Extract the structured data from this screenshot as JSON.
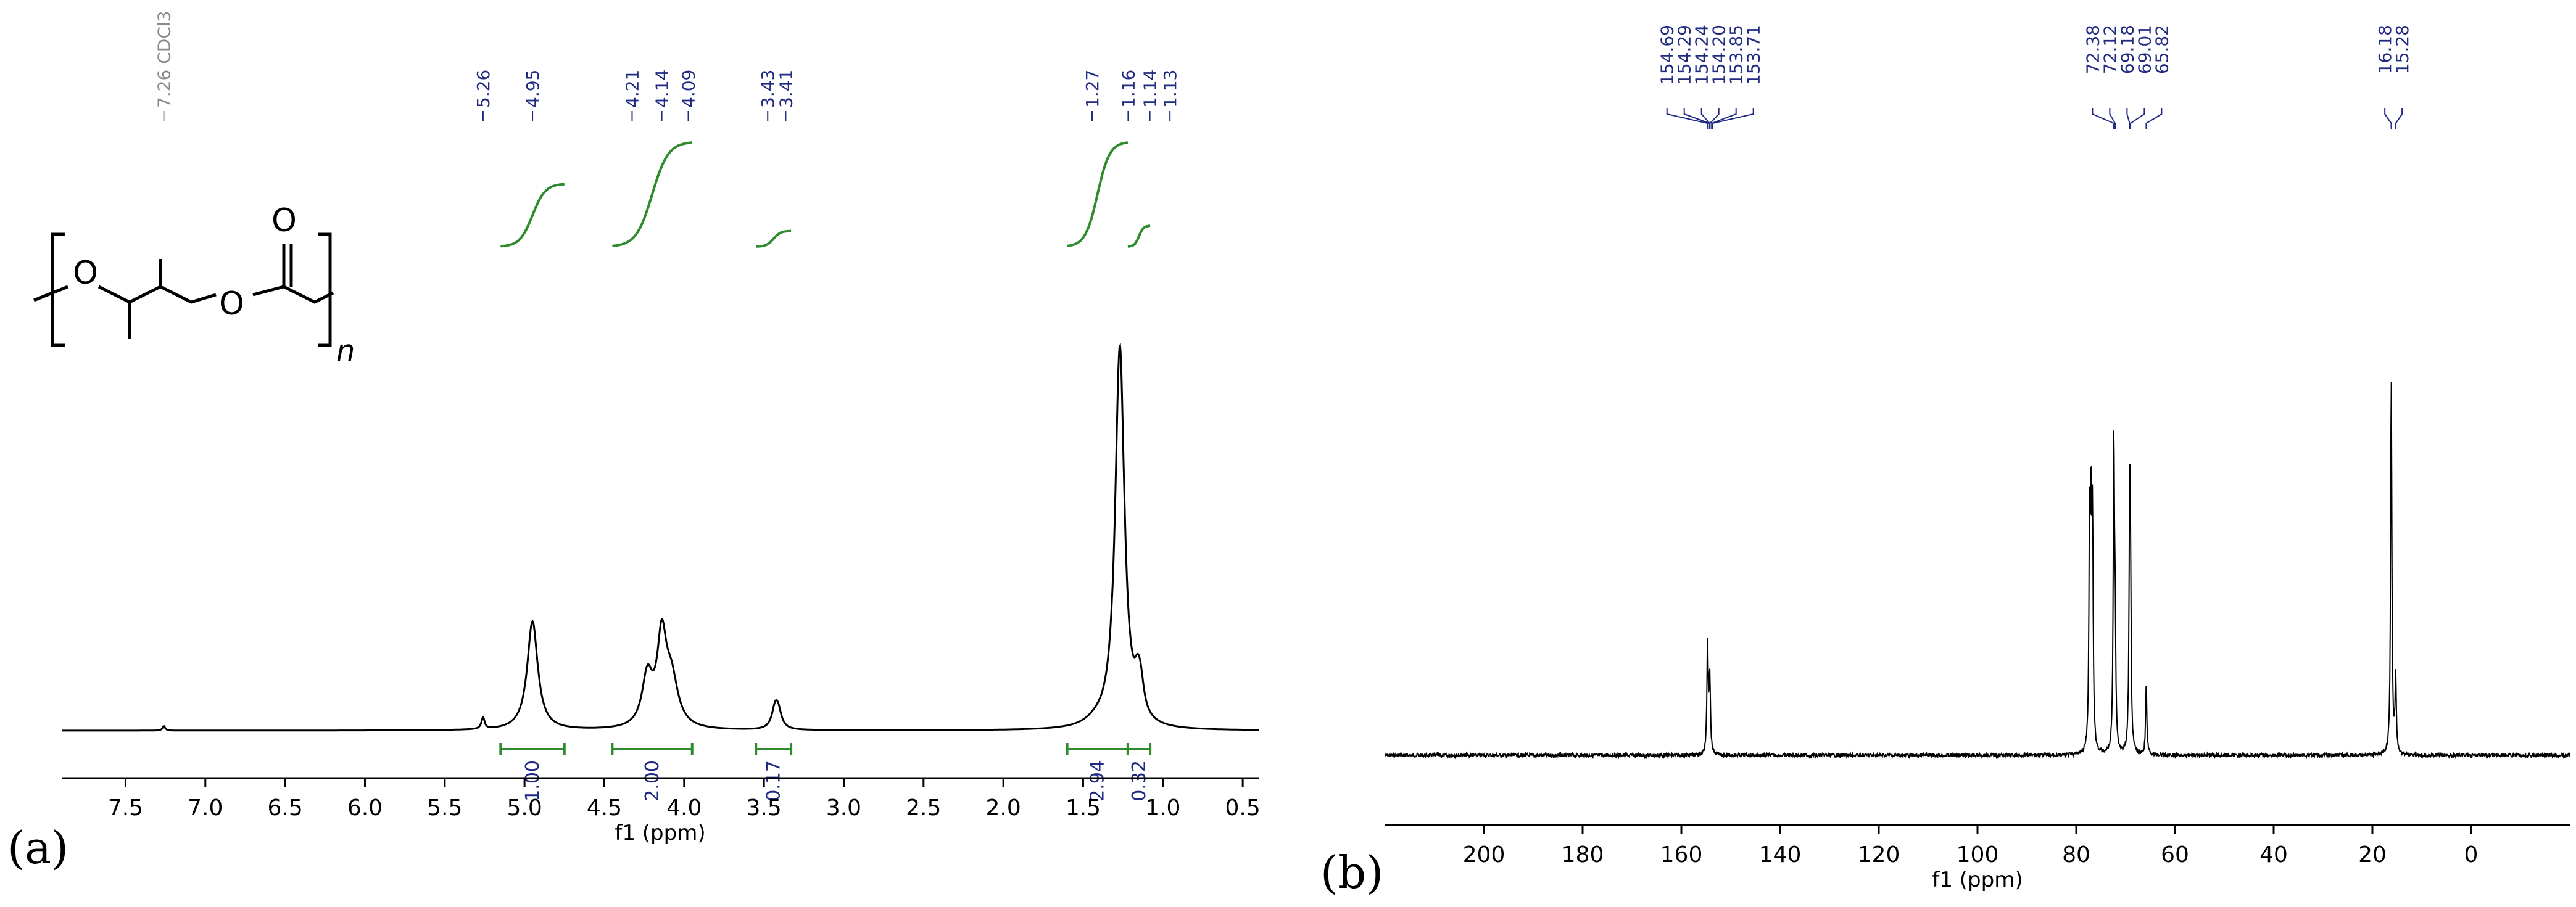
{
  "figure": {
    "panel_a_label": "(a)",
    "panel_b_label": "(b)"
  },
  "structure": {
    "atom_o1": "O",
    "atom_o2": "O",
    "atom_o3": "O",
    "subscript": "n"
  },
  "chart_data": [
    {
      "type": "line",
      "nucleus": "1H NMR spectrum",
      "xlabel": "f1 (ppm)",
      "xlim": [
        7.9,
        0.4
      ],
      "x_reversed": true,
      "x_ticks": [
        "7.5",
        "7.0",
        "6.5",
        "6.0",
        "5.5",
        "5.0",
        "4.5",
        "4.0",
        "3.5",
        "3.0",
        "2.5",
        "2.0",
        "1.5",
        "1.0",
        "0.5"
      ],
      "grid": false,
      "series": [
        {
          "peaks": [
            {
              "x": 7.26,
              "height": 0.012,
              "width": 0.01
            },
            {
              "x": 5.26,
              "height": 0.03,
              "width": 0.012
            },
            {
              "x": 4.95,
              "height": 0.285,
              "width": 0.04
            },
            {
              "x": 4.23,
              "height": 0.13,
              "width": 0.04
            },
            {
              "x": 4.14,
              "height": 0.22,
              "width": 0.035
            },
            {
              "x": 4.08,
              "height": 0.12,
              "width": 0.05
            },
            {
              "x": 3.43,
              "height": 0.05,
              "width": 0.025
            },
            {
              "x": 3.41,
              "height": 0.04,
              "width": 0.025
            },
            {
              "x": 1.27,
              "height": 1.0,
              "width": 0.035
            },
            {
              "x": 1.16,
              "height": 0.065,
              "width": 0.025
            },
            {
              "x": 1.14,
              "height": 0.07,
              "width": 0.025
            },
            {
              "x": 1.42,
              "height": 0.012,
              "width": 0.08
            }
          ]
        }
      ],
      "peak_labels": [
        {
          "x": 7.26,
          "label": "7.26 CDCl3",
          "color": "#8a8a8a"
        },
        {
          "x": 5.26,
          "label": "5.26",
          "color": "#1f2a80"
        },
        {
          "x": 4.95,
          "label": "4.95",
          "color": "#1f2a80"
        },
        {
          "x": 4.21,
          "label": "4.21",
          "color": "#1f2a80"
        },
        {
          "x": 4.14,
          "label": "4.14",
          "color": "#1f2a80"
        },
        {
          "x": 4.09,
          "label": "4.09",
          "color": "#1f2a80"
        },
        {
          "x": 3.43,
          "label": "3.43",
          "color": "#1f2a80"
        },
        {
          "x": 3.41,
          "label": "3.41",
          "color": "#1f2a80"
        },
        {
          "x": 1.27,
          "label": "1.27",
          "color": "#1f2a80"
        },
        {
          "x": 1.16,
          "label": "1.16",
          "color": "#1f2a80"
        },
        {
          "x": 1.14,
          "label": "1.14",
          "color": "#1f2a80"
        },
        {
          "x": 1.13,
          "label": "1.13",
          "color": "#1f2a80"
        }
      ],
      "integrals": [
        {
          "from": 5.15,
          "to": 4.75,
          "value": "1.00",
          "rise": 0.6
        },
        {
          "from": 4.45,
          "to": 3.95,
          "value": "2.00",
          "rise": 1.0
        },
        {
          "from": 3.55,
          "to": 3.33,
          "value": "0.17",
          "rise": 0.15
        },
        {
          "from": 1.6,
          "to": 1.22,
          "value": "2.94",
          "rise": 1.0
        },
        {
          "from": 1.22,
          "to": 1.08,
          "value": "0.32",
          "rise": 0.2
        }
      ],
      "colors": {
        "spectrum": "#000000",
        "integral": "#2e8b2e",
        "peak_label": "#1f2a80"
      }
    },
    {
      "type": "line",
      "nucleus": "13C NMR spectrum",
      "xlabel": "f1 (ppm)",
      "xlim": [
        220,
        -20
      ],
      "x_reversed": true,
      "x_ticks": [
        "200",
        "180",
        "160",
        "140",
        "120",
        "100",
        "80",
        "60",
        "40",
        "20",
        "0"
      ],
      "grid": false,
      "series": [
        {
          "peaks": [
            {
              "x": 154.69,
              "height": 0.3,
              "width": 0.15
            },
            {
              "x": 154.29,
              "height": 0.12,
              "width": 0.15
            },
            {
              "x": 154.2,
              "height": 0.1,
              "width": 0.15
            },
            {
              "x": 77.3,
              "height": 0.56,
              "width": 0.15
            },
            {
              "x": 77.0,
              "height": 0.56,
              "width": 0.15
            },
            {
              "x": 76.7,
              "height": 0.56,
              "width": 0.15
            },
            {
              "x": 72.38,
              "height": 0.8,
              "width": 0.15
            },
            {
              "x": 72.12,
              "height": 0.3,
              "width": 0.15
            },
            {
              "x": 69.18,
              "height": 0.58,
              "width": 0.15
            },
            {
              "x": 69.01,
              "height": 0.4,
              "width": 0.15
            },
            {
              "x": 65.82,
              "height": 0.18,
              "width": 0.15
            },
            {
              "x": 16.18,
              "height": 1.0,
              "width": 0.15
            },
            {
              "x": 15.28,
              "height": 0.2,
              "width": 0.15
            }
          ]
        }
      ],
      "peak_labels": [
        {
          "x": 154.69,
          "label": "154.69"
        },
        {
          "x": 154.29,
          "label": "154.29"
        },
        {
          "x": 154.24,
          "label": "154.24"
        },
        {
          "x": 154.2,
          "label": "154.20"
        },
        {
          "x": 153.85,
          "label": "153.85"
        },
        {
          "x": 153.71,
          "label": "153.71"
        },
        {
          "x": 72.38,
          "label": "72.38"
        },
        {
          "x": 72.12,
          "label": "72.12"
        },
        {
          "x": 69.18,
          "label": "69.18"
        },
        {
          "x": 69.01,
          "label": "69.01"
        },
        {
          "x": 65.82,
          "label": "65.82"
        },
        {
          "x": 16.18,
          "label": "16.18"
        },
        {
          "x": 15.28,
          "label": "15.28"
        }
      ],
      "colors": {
        "spectrum": "#000000",
        "peak_label": "#1f2a80"
      }
    }
  ]
}
